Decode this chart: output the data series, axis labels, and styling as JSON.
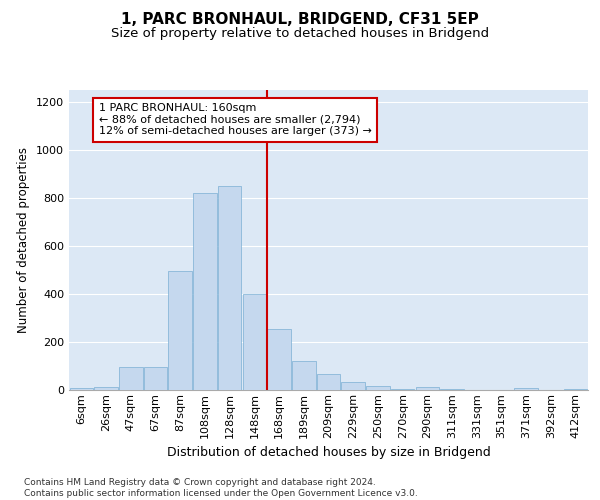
{
  "title": "1, PARC BRONHAUL, BRIDGEND, CF31 5EP",
  "subtitle": "Size of property relative to detached houses in Bridgend",
  "xlabel": "Distribution of detached houses by size in Bridgend",
  "ylabel": "Number of detached properties",
  "categories": [
    "6sqm",
    "26sqm",
    "47sqm",
    "67sqm",
    "87sqm",
    "108sqm",
    "128sqm",
    "148sqm",
    "168sqm",
    "189sqm",
    "209sqm",
    "229sqm",
    "250sqm",
    "270sqm",
    "290sqm",
    "311sqm",
    "331sqm",
    "351sqm",
    "371sqm",
    "392sqm",
    "412sqm"
  ],
  "values": [
    8,
    12,
    95,
    95,
    495,
    820,
    850,
    400,
    255,
    120,
    68,
    32,
    15,
    5,
    12,
    5,
    0,
    0,
    8,
    0,
    3
  ],
  "bar_color": "#c5d8ee",
  "bar_edge_color": "#7aafd4",
  "vline_x": 7.5,
  "vline_color": "#cc0000",
  "annotation_line1": "1 PARC BRONHAUL: 160sqm",
  "annotation_line2": "← 88% of detached houses are smaller (2,794)",
  "annotation_line3": "12% of semi-detached houses are larger (373) →",
  "annotation_box_facecolor": "#ffffff",
  "annotation_box_edgecolor": "#cc0000",
  "ylim": [
    0,
    1250
  ],
  "yticks": [
    0,
    200,
    400,
    600,
    800,
    1000,
    1200
  ],
  "background_color": "#dce8f5",
  "grid_color": "#ffffff",
  "footer_line1": "Contains HM Land Registry data © Crown copyright and database right 2024.",
  "footer_line2": "Contains public sector information licensed under the Open Government Licence v3.0.",
  "title_fontsize": 11,
  "subtitle_fontsize": 9.5,
  "xlabel_fontsize": 9,
  "ylabel_fontsize": 8.5,
  "tick_fontsize": 8,
  "annotation_fontsize": 8,
  "footer_fontsize": 6.5
}
